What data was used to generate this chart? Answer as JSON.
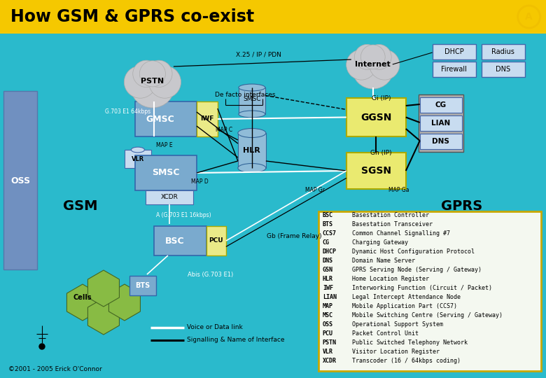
{
  "title": "How GSM & GPRS co-exist",
  "bg_color": "#2ABACC",
  "header_color": "#F5C800",
  "legend_entries": [
    [
      "BSC",
      "Basestation Controller"
    ],
    [
      "BTS",
      "Basestation Transceiver"
    ],
    [
      "CCS7",
      "Common Channel Signalling #7"
    ],
    [
      "CG",
      "Charging Gateway"
    ],
    [
      "DHCP",
      "Dynamic Host Configuration Protocol"
    ],
    [
      "DNS",
      "Domain Name Server"
    ],
    [
      "GSN",
      "GPRS Serving Node (Serving / Gateway)"
    ],
    [
      "HLR",
      "Home Location Register"
    ],
    [
      "IWF",
      "Interworking Function (Circuit / Packet)"
    ],
    [
      "LIAN",
      "Legal Intercept Attendance Node"
    ],
    [
      "MAP",
      "Mobile Application Part (CCS7)"
    ],
    [
      "MSC",
      "Mobile Switching Centre (Serving / Gateway)"
    ],
    [
      "OSS",
      "Operational Support System"
    ],
    [
      "PCU",
      "Packet Control Unit"
    ],
    [
      "PSTN",
      "Public Switched Telephony Network"
    ],
    [
      "VLR",
      "Visitor Location Register"
    ],
    [
      "XCDR",
      "Transcoder (16 / 64kbps coding)"
    ]
  ],
  "copyright": "©2001 - 2005 Erick O'Connor",
  "oss_color": "#7090C0",
  "box_blue": "#7AAACE",
  "box_yellow": "#EAEA70",
  "box_iwf": "#EAEA88",
  "box_light": "#C8DCF0",
  "box_legend": "#F0F8F4",
  "cloud_color": "#C8C8CC",
  "cylinder_color": "#90BCD8"
}
